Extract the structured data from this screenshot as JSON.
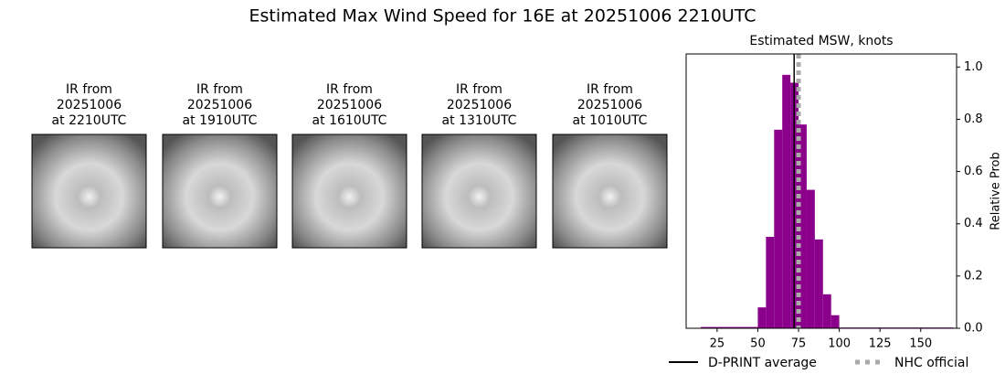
{
  "title": "Estimated Max Wind Speed for 16E at 20251006 2210UTC",
  "panels": [
    {
      "lines": [
        "IR from",
        "20251006",
        "at 2210UTC"
      ]
    },
    {
      "lines": [
        "IR from",
        "20251006",
        "at 1910UTC"
      ]
    },
    {
      "lines": [
        "IR from",
        "20251006",
        "at 1610UTC"
      ]
    },
    {
      "lines": [
        "IR from",
        "20251006",
        "at 1310UTC"
      ]
    },
    {
      "lines": [
        "IR from",
        "20251006",
        "at 1010UTC"
      ]
    }
  ],
  "chart_data": {
    "type": "histogram",
    "title": "Estimated MSW, knots",
    "y_label": "Relative Prob",
    "color": "#8b008b",
    "bins": [
      15,
      20,
      25,
      30,
      35,
      40,
      45,
      50,
      55,
      60,
      65,
      70,
      75,
      80,
      85,
      90,
      95,
      100,
      105,
      110,
      115,
      120,
      125,
      130,
      135,
      140,
      145,
      150,
      155,
      160,
      165,
      170
    ],
    "counts": [
      0.005,
      0.005,
      0.005,
      0.005,
      0.005,
      0.005,
      0.005,
      0.08,
      0.35,
      0.76,
      0.97,
      0.94,
      0.78,
      0.53,
      0.34,
      0.13,
      0.05,
      0.003,
      0.003,
      0.003,
      0.003,
      0.003,
      0.003,
      0.003,
      0.003,
      0.003,
      0.003,
      0.003,
      0.003,
      0.003,
      0.003
    ],
    "xlim": [
      6,
      172
    ],
    "ylim": [
      0,
      1.05
    ],
    "xticks": [
      25,
      50,
      75,
      100,
      125,
      150
    ],
    "yticks": [
      {
        "value": 0,
        "label": "0.0"
      },
      {
        "value": 0.2,
        "label": "0.2"
      },
      {
        "value": 0.4,
        "label": "0.4"
      },
      {
        "value": 0.6,
        "label": "0.6"
      },
      {
        "value": 0.8,
        "label": "0.8"
      },
      {
        "value": 1,
        "label": "1.0"
      }
    ],
    "vlines": [
      {
        "name": "D-PRINT average",
        "value": 72.3,
        "color": "#000000",
        "dashed": false
      },
      {
        "name": "NHC official",
        "value": 75,
        "color": "#aaaaaa",
        "dashed": true
      }
    ]
  }
}
